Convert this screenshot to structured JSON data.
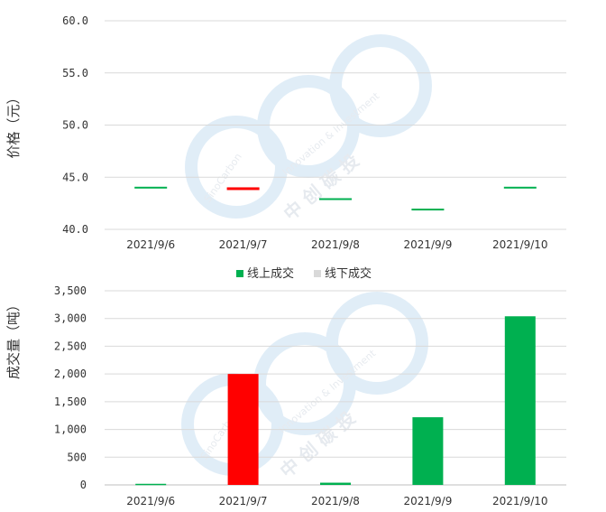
{
  "watermark": {
    "brand_en_1": "SinoCarbon",
    "brand_en_2": "Innovation & Investment",
    "brand_cn": "中 创 碳 投"
  },
  "chart_data": [
    {
      "type": "bar",
      "subtype": "price-range",
      "categories": [
        "2021/9/6",
        "2021/9/7",
        "2021/9/8",
        "2021/9/9",
        "2021/9/10"
      ],
      "ylabel": "价格（元）",
      "ylim": [
        40,
        60
      ],
      "yticks": [
        "40.0",
        "45.0",
        "50.0",
        "55.0",
        "60.0"
      ],
      "grid": true,
      "series": [
        {
          "values": [
            44.0,
            43.9,
            42.9,
            41.9,
            44.0
          ]
        }
      ],
      "colors": [
        "#00b050",
        "#ff0000",
        "#00b050",
        "#00b050",
        "#00b050"
      ]
    },
    {
      "type": "bar",
      "categories": [
        "2021/9/6",
        "2021/9/7",
        "2021/9/8",
        "2021/9/9",
        "2021/9/10"
      ],
      "ylabel": "成交量（吨）",
      "ylim": [
        0,
        3500
      ],
      "yticks": [
        "0",
        "500",
        "1,000",
        "1,500",
        "2,000",
        "2,500",
        "3,000",
        "3,500"
      ],
      "grid": true,
      "legend_position": "top",
      "series": [
        {
          "name": "线上成交",
          "values": [
            20,
            2000,
            40,
            1220,
            3040
          ],
          "color": "#00b050"
        },
        {
          "name": "线下成交",
          "values": [
            0,
            0,
            0,
            0,
            0
          ],
          "color": "#d9d9d9"
        }
      ],
      "bar_colors": [
        "#00b050",
        "#ff0000",
        "#00b050",
        "#00b050",
        "#00b050"
      ]
    }
  ]
}
